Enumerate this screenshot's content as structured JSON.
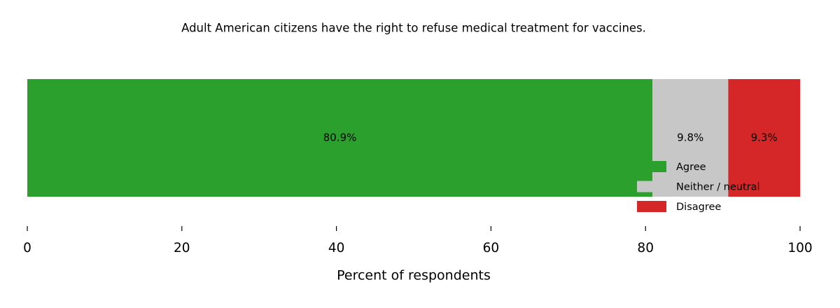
{
  "chart_data": {
    "type": "bar",
    "orientation": "horizontal",
    "stacked": true,
    "title": "Adult American citizens have the right to refuse medical treatment for vaccines.",
    "xlabel": "Percent of respondents",
    "categories": [
      null
    ],
    "series": [
      {
        "name": "Agree",
        "color": "#2ca02c",
        "values": [
          80.9
        ],
        "value_labels": [
          "80.9%"
        ]
      },
      {
        "name": "Neither / neutral",
        "color": "#c7c7c7",
        "values": [
          9.8
        ],
        "value_labels": [
          "9.8%"
        ]
      },
      {
        "name": "Disagree",
        "color": "#d62728",
        "values": [
          9.3
        ],
        "value_labels": [
          "9.3%"
        ]
      }
    ],
    "xlim": [
      0,
      100
    ],
    "xticks": [
      0,
      20,
      40,
      60,
      80,
      100
    ],
    "grid": false,
    "legend": "lower right"
  }
}
